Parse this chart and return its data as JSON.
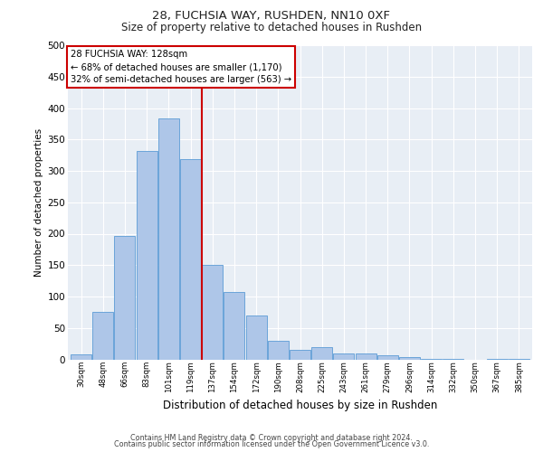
{
  "title1": "28, FUCHSIA WAY, RUSHDEN, NN10 0XF",
  "title2": "Size of property relative to detached houses in Rushden",
  "xlabel": "Distribution of detached houses by size in Rushden",
  "ylabel": "Number of detached properties",
  "categories": [
    "30sqm",
    "48sqm",
    "66sqm",
    "83sqm",
    "101sqm",
    "119sqm",
    "137sqm",
    "154sqm",
    "172sqm",
    "190sqm",
    "208sqm",
    "225sqm",
    "243sqm",
    "261sqm",
    "279sqm",
    "296sqm",
    "314sqm",
    "332sqm",
    "350sqm",
    "367sqm",
    "385sqm"
  ],
  "values": [
    8,
    76,
    197,
    331,
    384,
    319,
    150,
    107,
    70,
    29,
    15,
    20,
    10,
    10,
    6,
    3,
    1,
    1,
    0,
    1,
    1
  ],
  "bar_color": "#aec6e8",
  "bar_edge_color": "#5b9bd5",
  "vline_x": 5.5,
  "vline_color": "#cc0000",
  "annotation_line1": "28 FUCHSIA WAY: 128sqm",
  "annotation_line2": "← 68% of detached houses are smaller (1,170)",
  "annotation_line3": "32% of semi-detached houses are larger (563) →",
  "annotation_box_color": "#ffffff",
  "annotation_box_edge": "#cc0000",
  "bg_color": "#e8eef5",
  "footer1": "Contains HM Land Registry data © Crown copyright and database right 2024.",
  "footer2": "Contains public sector information licensed under the Open Government Licence v3.0.",
  "ylim": [
    0,
    500
  ],
  "yticks": [
    0,
    50,
    100,
    150,
    200,
    250,
    300,
    350,
    400,
    450,
    500
  ]
}
